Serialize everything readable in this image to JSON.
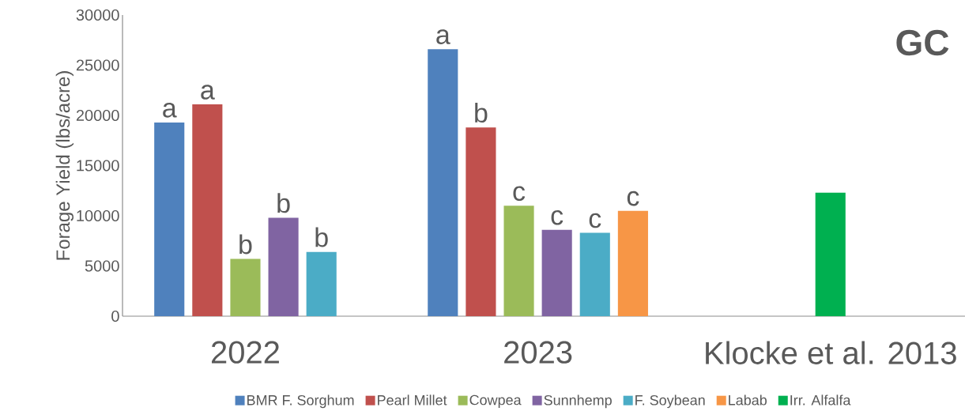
{
  "chart_data": {
    "type": "bar",
    "title": "GC",
    "ylabel": "Forage Yield (lbs/acre)",
    "categories": [
      "2022",
      "2023",
      "Klocke et al. 2013"
    ],
    "series": [
      {
        "name": "BMR F. Sorghum",
        "color": "#4f81bd",
        "values": [
          19300,
          26600,
          null
        ],
        "value_labels": [
          "a",
          "a",
          null
        ]
      },
      {
        "name": "Pearl Millet",
        "color": "#c0504d",
        "values": [
          21100,
          18800,
          null
        ],
        "value_labels": [
          "a",
          "b",
          null
        ]
      },
      {
        "name": "Cowpea",
        "color": "#9bbb59",
        "values": [
          5700,
          11000,
          null
        ],
        "value_labels": [
          "b",
          "c",
          null
        ]
      },
      {
        "name": "Sunnhemp",
        "color": "#8064a2",
        "values": [
          9800,
          8600,
          null
        ],
        "value_labels": [
          "b",
          "c",
          null
        ]
      },
      {
        "name": "F. Soybean",
        "color": "#4bacc6",
        "values": [
          6400,
          8300,
          null
        ],
        "value_labels": [
          "b",
          "c",
          null
        ]
      },
      {
        "name": "Labab",
        "color": "#f79646",
        "values": [
          null,
          10500,
          null
        ],
        "value_labels": [
          null,
          "c",
          null
        ]
      },
      {
        "name": "Irr. Alfalfa",
        "color": "#00b050",
        "values": [
          null,
          null,
          12300
        ]
      }
    ],
    "ylim": [
      0,
      30000
    ],
    "yticks": [
      0,
      5000,
      10000,
      15000,
      20000,
      25000,
      30000
    ],
    "grid": false,
    "legend": "bottom"
  }
}
